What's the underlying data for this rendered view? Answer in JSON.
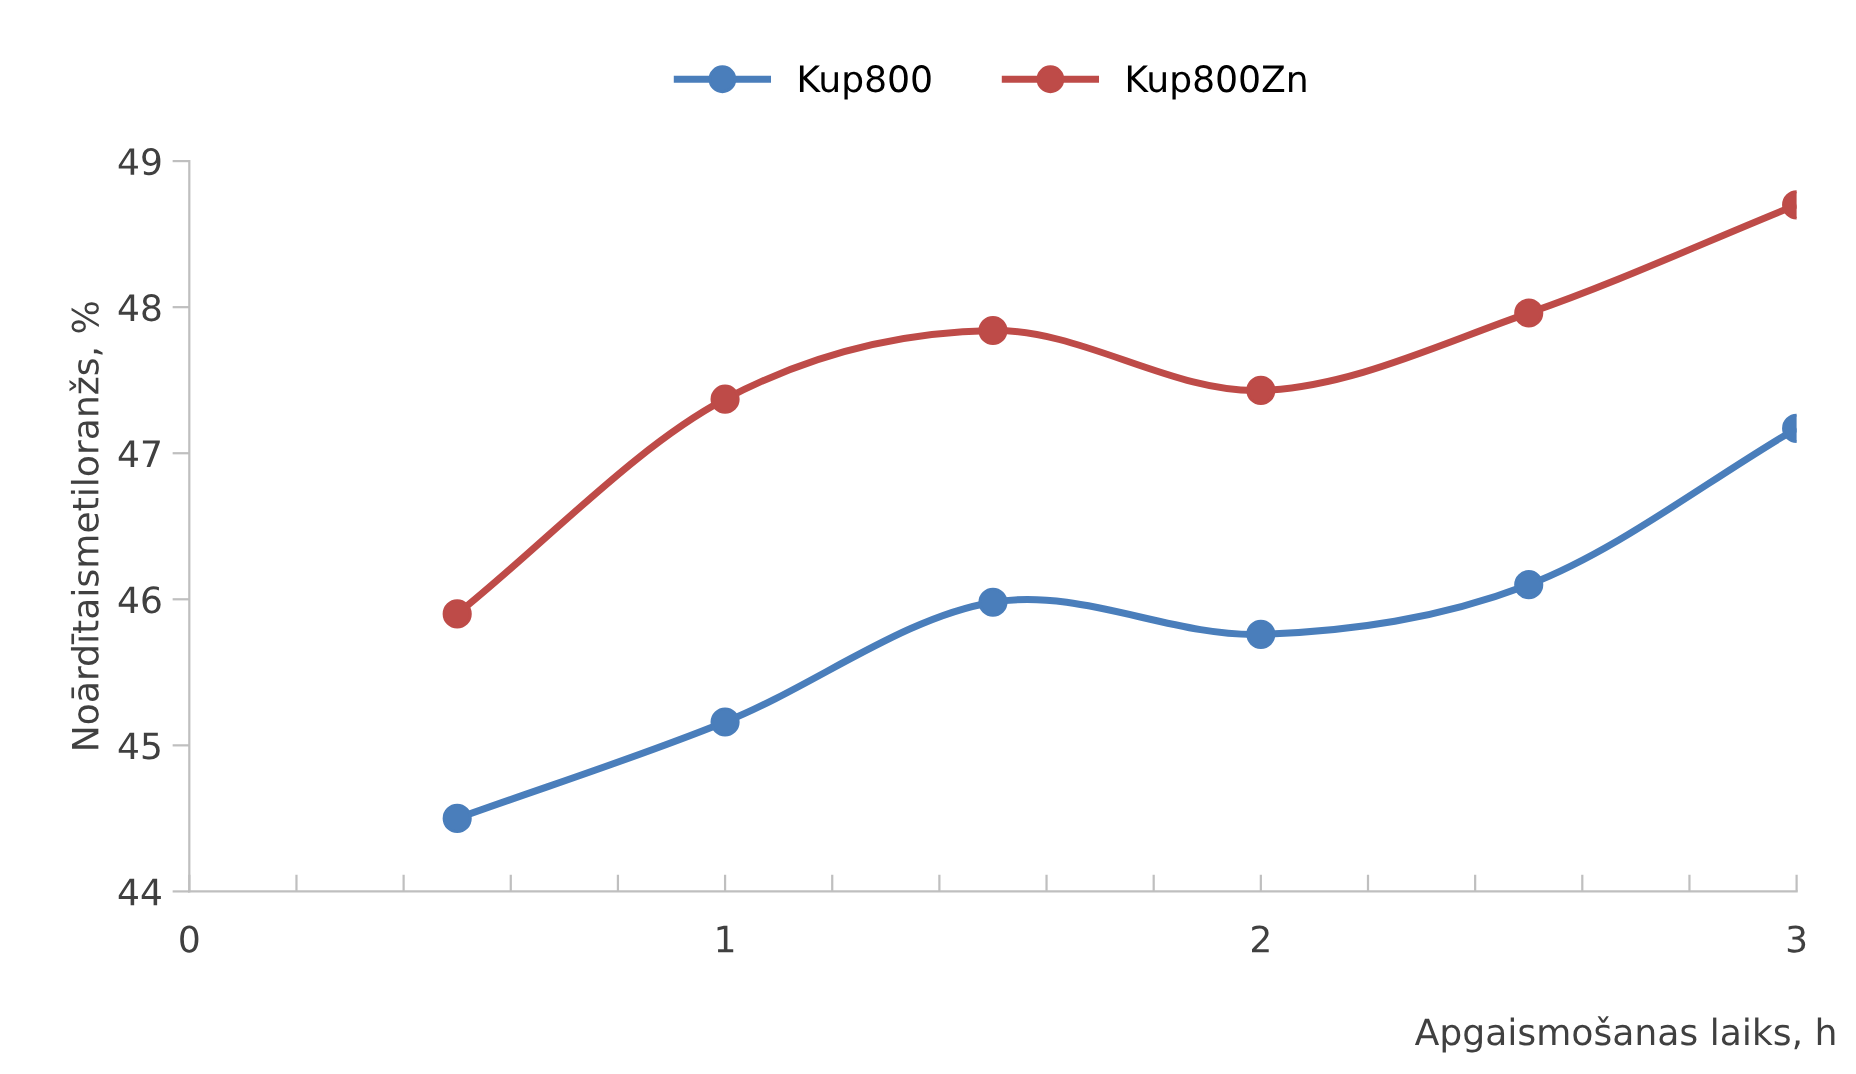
{
  "chart_data": {
    "type": "line",
    "xlabel": "Apgaismošanas laiks, h",
    "ylabel": "Noārdītaismetiloranžs, %",
    "x": [
      0.5,
      1,
      1.5,
      2,
      2.5,
      3
    ],
    "series": [
      {
        "name": "Kup800",
        "color": "#4a7ebb",
        "values": [
          44.5,
          45.16,
          45.98,
          45.76,
          46.1,
          47.17
        ]
      },
      {
        "name": "Kup800Zn",
        "color": "#be4b48",
        "values": [
          45.9,
          47.37,
          47.84,
          47.43,
          47.96,
          48.7
        ]
      }
    ],
    "xlim": [
      0,
      3
    ],
    "ylim": [
      44,
      49
    ],
    "xticks": [
      0,
      {
        "value": 0.2,
        "label": null
      },
      {
        "value": 0.4,
        "label": null
      },
      {
        "value": 0.6,
        "label": null
      },
      {
        "value": 0.8,
        "label": null
      },
      1,
      {
        "value": 1.2,
        "label": null
      },
      {
        "value": 1.4,
        "label": null
      },
      {
        "value": 1.6,
        "label": null
      },
      {
        "value": 1.8,
        "label": null
      },
      2,
      {
        "value": 2.2,
        "label": null
      },
      {
        "value": 2.4,
        "label": null
      },
      {
        "value": 2.6,
        "label": null
      },
      {
        "value": 2.8,
        "label": null
      },
      3
    ],
    "yticks": [
      44,
      45,
      46,
      47,
      48,
      49
    ],
    "grid": false,
    "legend": "top",
    "marker": "circle",
    "line_style": "solid"
  }
}
